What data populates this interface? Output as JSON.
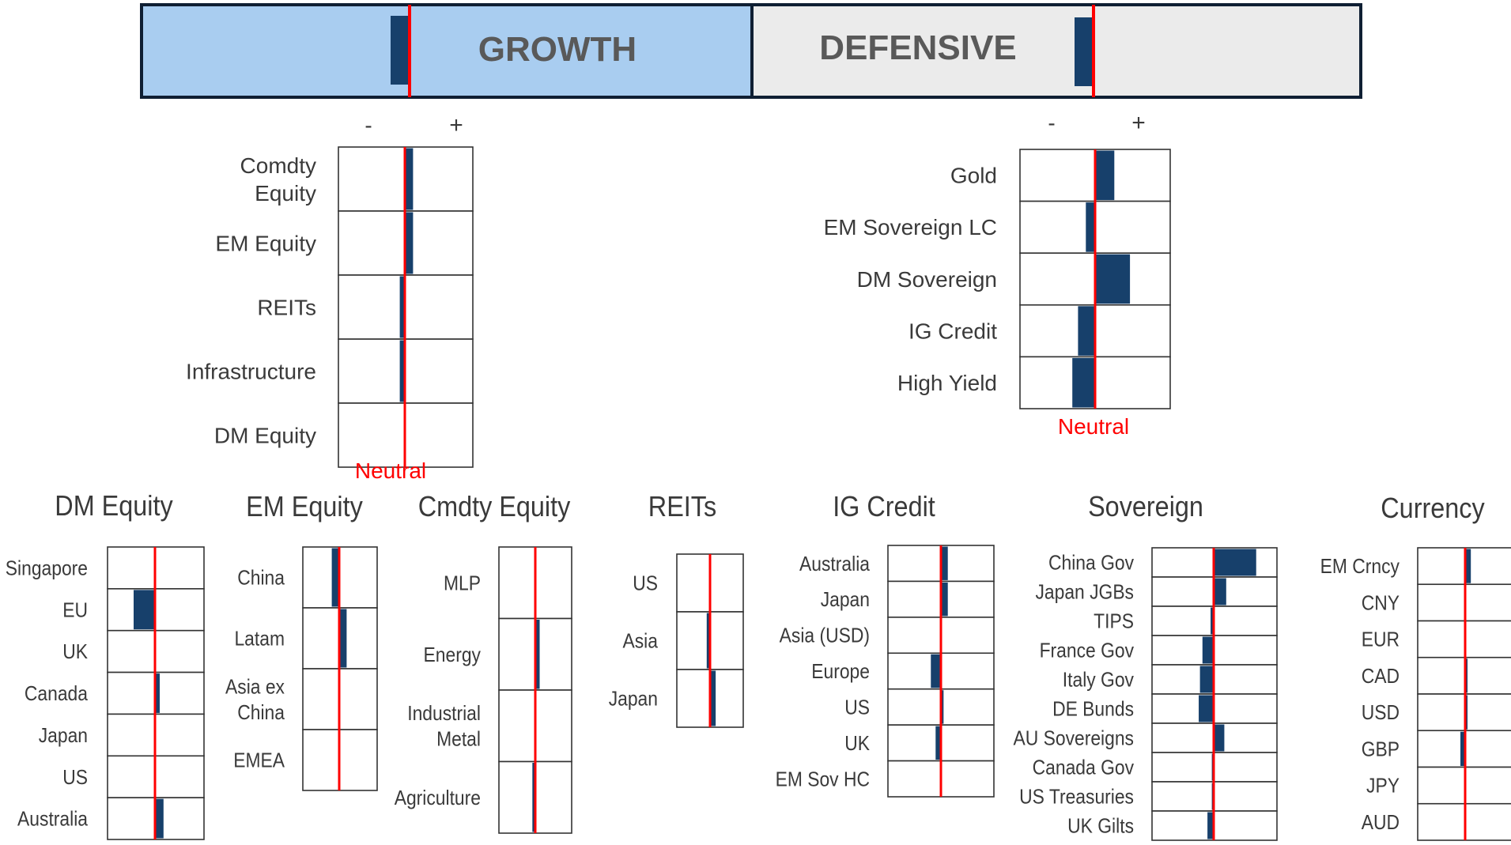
{
  "banner": {
    "growth_label": "GROWTH",
    "defensive_label": "DEFENSIVE",
    "growth_color": "#a9cdf0",
    "defensive_color": "#ebebeb",
    "growth_tilt": -0.25,
    "defensive_tilt": -0.25
  },
  "colors": {
    "bar": "#17406b",
    "neutral_line": "#ff0000",
    "cell_border": "#333333"
  },
  "chart_data": [
    {
      "id": "growth",
      "type": "bar",
      "minus_label": "-",
      "plus_label": "+",
      "neutral_label": "Neutral",
      "categories": [
        [
          "Comdty",
          "Equity"
        ],
        [
          "EM Equity"
        ],
        [
          "REITs"
        ],
        [
          "Infrastructure"
        ],
        [
          "DM Equity"
        ]
      ],
      "values": [
        0.13,
        0.13,
        -0.08,
        -0.08,
        0
      ],
      "xlim": [
        -1,
        1
      ]
    },
    {
      "id": "defensive",
      "type": "bar",
      "minus_label": "-",
      "plus_label": "+",
      "neutral_label": "Neutral",
      "categories": [
        [
          "Gold"
        ],
        [
          "EM Sovereign LC"
        ],
        [
          "DM Sovereign"
        ],
        [
          "IG Credit"
        ],
        [
          "High Yield"
        ]
      ],
      "values": [
        0.27,
        -0.13,
        0.49,
        -0.24,
        -0.32
      ],
      "xlim": [
        -1,
        1
      ]
    },
    {
      "id": "dm-equity",
      "type": "bar",
      "title": "DM Equity",
      "categories": [
        [
          "Singapore"
        ],
        [
          "EU"
        ],
        [
          "UK"
        ],
        [
          "Canada"
        ],
        [
          "Japan"
        ],
        [
          "US"
        ],
        [
          "Australia"
        ]
      ],
      "values": [
        0,
        -0.45,
        0.02,
        0.1,
        0.02,
        0,
        0.18
      ],
      "xlim": [
        -1,
        1
      ]
    },
    {
      "id": "em-equity",
      "type": "bar",
      "title": "EM Equity",
      "categories": [
        [
          "China"
        ],
        [
          "Latam"
        ],
        [
          "Asia ex",
          "China"
        ],
        [
          "EMEA"
        ]
      ],
      "values": [
        -0.2,
        0.2,
        0,
        0
      ],
      "xlim": [
        -1,
        1
      ]
    },
    {
      "id": "cmdty-equity",
      "type": "bar",
      "title": "Cmdty Equity",
      "categories": [
        [
          "MLP"
        ],
        [
          "Energy"
        ],
        [
          "Industrial",
          "Metal"
        ],
        [
          "Agriculture"
        ]
      ],
      "values": [
        0,
        0.12,
        0,
        -0.08
      ],
      "xlim": [
        -1,
        1
      ]
    },
    {
      "id": "reits",
      "type": "bar",
      "title": "REITs",
      "categories": [
        [
          "US"
        ],
        [
          "Asia"
        ],
        [
          "Japan"
        ]
      ],
      "values": [
        0,
        -0.1,
        0.17
      ],
      "xlim": [
        -1,
        1
      ]
    },
    {
      "id": "ig-credit",
      "type": "bar",
      "title": "IG Credit",
      "categories": [
        [
          "Australia"
        ],
        [
          "Japan"
        ],
        [
          "Asia (USD)"
        ],
        [
          "Europe"
        ],
        [
          "US"
        ],
        [
          "UK"
        ],
        [
          "EM Sov HC"
        ]
      ],
      "values": [
        0.13,
        0.13,
        0,
        -0.19,
        0.05,
        -0.1,
        0
      ],
      "xlim": [
        -1,
        1
      ]
    },
    {
      "id": "sovereign",
      "type": "bar",
      "title": "Sovereign",
      "categories": [
        [
          "China Gov"
        ],
        [
          "Japan JGBs"
        ],
        [
          "TIPS"
        ],
        [
          "France Gov"
        ],
        [
          "Italy Gov"
        ],
        [
          "DE Bunds"
        ],
        [
          "AU Sovereigns"
        ],
        [
          "Canada Gov"
        ],
        [
          "US Treasuries"
        ],
        [
          "UK Gilts"
        ]
      ],
      "values": [
        0.68,
        0.2,
        -0.05,
        -0.18,
        -0.22,
        -0.24,
        0.17,
        -0.03,
        -0.03,
        -0.1
      ],
      "xlim": [
        -1,
        1
      ]
    },
    {
      "id": "currency",
      "type": "bar",
      "title": "Currency",
      "categories": [
        [
          "EM Crncy"
        ],
        [
          "CNY"
        ],
        [
          "EUR"
        ],
        [
          "CAD"
        ],
        [
          "USD"
        ],
        [
          "GBP"
        ],
        [
          "JPY"
        ],
        [
          "AUD"
        ]
      ],
      "values": [
        0.12,
        0,
        -0.02,
        0.05,
        0.05,
        -0.1,
        -0.02,
        0
      ],
      "xlim": [
        -1,
        1
      ]
    }
  ]
}
